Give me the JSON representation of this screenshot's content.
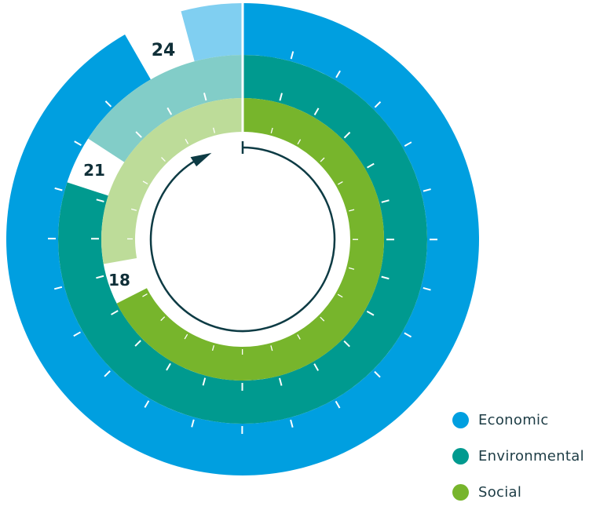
{
  "chart_data": {
    "type": "radial-bar",
    "title": "",
    "units_note": "fractions of a full circle, clockwise from top",
    "series": [
      {
        "name": "Economic",
        "label": "24",
        "filled_fraction": 0.917,
        "remainder_start_fraction": 0.958,
        "color": "#009fe0",
        "light_color": "#80cff1"
      },
      {
        "name": "Environmental",
        "label": "21",
        "filled_fraction": 0.8,
        "remainder_start_fraction": 0.842,
        "color": "#009a8f",
        "light_color": "#82cdc8"
      },
      {
        "name": "Social",
        "label": "18",
        "filled_fraction": 0.675,
        "remainder_start_fraction": 0.722,
        "color": "#77b52c",
        "light_color": "#bddc99"
      }
    ],
    "tick_interval_fraction": 0.0417,
    "direction": "clockwise",
    "legend": {
      "placement": "bottom-right",
      "entries": [
        "Economic",
        "Environmental",
        "Social"
      ]
    }
  }
}
